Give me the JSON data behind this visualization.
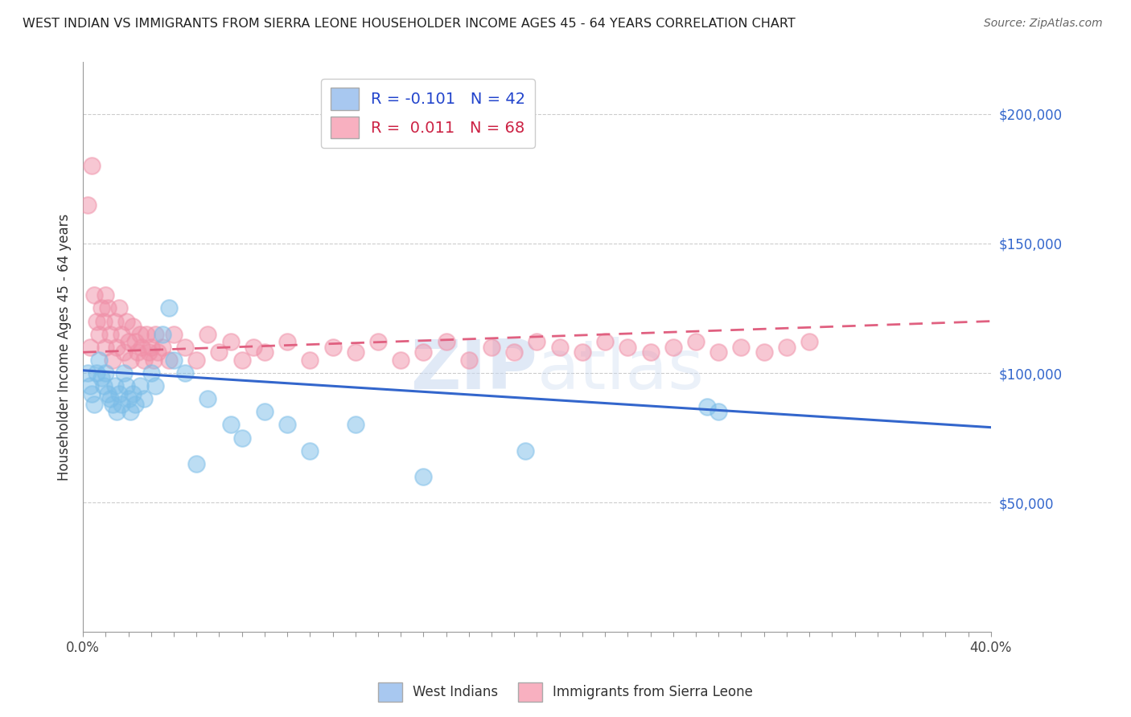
{
  "title": "WEST INDIAN VS IMMIGRANTS FROM SIERRA LEONE HOUSEHOLDER INCOME AGES 45 - 64 YEARS CORRELATION CHART",
  "source": "Source: ZipAtlas.com",
  "ylabel": "Householder Income Ages 45 - 64 years",
  "ylabel_values": [
    50000,
    100000,
    150000,
    200000
  ],
  "ylabel_labels": [
    "$50,000",
    "$100,000",
    "$150,000",
    "$200,000"
  ],
  "blue_color": "#7bbde8",
  "pink_color": "#f090a8",
  "trend_blue": "#3366cc",
  "trend_pink": "#e06080",
  "legend_1_color": "#a8c8f0",
  "legend_2_color": "#f8b0c0",
  "watermark": "ZIPatlas",
  "west_indians_x": [
    0.2,
    0.3,
    0.4,
    0.5,
    0.6,
    0.7,
    0.8,
    0.9,
    1.0,
    1.1,
    1.2,
    1.3,
    1.4,
    1.5,
    1.6,
    1.7,
    1.8,
    1.9,
    2.0,
    2.1,
    2.2,
    2.3,
    2.5,
    2.7,
    3.0,
    3.2,
    3.5,
    3.8,
    4.0,
    4.5,
    5.0,
    5.5,
    6.5,
    7.0,
    8.0,
    9.0,
    10.0,
    12.0,
    15.0,
    19.5,
    27.5,
    28.0
  ],
  "west_indians_y": [
    100000,
    95000,
    92000,
    88000,
    100000,
    105000,
    98000,
    95000,
    100000,
    92000,
    90000,
    88000,
    95000,
    85000,
    92000,
    88000,
    100000,
    95000,
    90000,
    85000,
    92000,
    88000,
    95000,
    90000,
    100000,
    95000,
    115000,
    125000,
    105000,
    100000,
    65000,
    90000,
    80000,
    75000,
    85000,
    80000,
    70000,
    80000,
    60000,
    70000,
    87000,
    85000
  ],
  "sierra_leone_x": [
    0.2,
    0.3,
    0.4,
    0.5,
    0.6,
    0.7,
    0.8,
    0.9,
    1.0,
    1.0,
    1.1,
    1.2,
    1.3,
    1.4,
    1.5,
    1.6,
    1.7,
    1.8,
    1.9,
    2.0,
    2.1,
    2.2,
    2.3,
    2.4,
    2.5,
    2.6,
    2.7,
    2.8,
    2.9,
    3.0,
    3.1,
    3.2,
    3.3,
    3.5,
    3.8,
    4.0,
    4.5,
    5.0,
    5.5,
    6.0,
    6.5,
    7.0,
    7.5,
    8.0,
    9.0,
    10.0,
    11.0,
    12.0,
    13.0,
    14.0,
    15.0,
    16.0,
    17.0,
    18.0,
    19.0,
    20.0,
    21.0,
    22.0,
    23.0,
    24.0,
    25.0,
    26.0,
    27.0,
    28.0,
    29.0,
    30.0,
    31.0,
    32.0
  ],
  "sierra_leone_y": [
    165000,
    110000,
    180000,
    130000,
    120000,
    115000,
    125000,
    120000,
    110000,
    130000,
    125000,
    115000,
    105000,
    120000,
    110000,
    125000,
    115000,
    108000,
    120000,
    112000,
    105000,
    118000,
    112000,
    108000,
    115000,
    110000,
    105000,
    115000,
    108000,
    110000,
    105000,
    115000,
    108000,
    110000,
    105000,
    115000,
    110000,
    105000,
    115000,
    108000,
    112000,
    105000,
    110000,
    108000,
    112000,
    105000,
    110000,
    108000,
    112000,
    105000,
    108000,
    112000,
    105000,
    110000,
    108000,
    112000,
    110000,
    108000,
    112000,
    110000,
    108000,
    110000,
    112000,
    108000,
    110000,
    108000,
    110000,
    112000
  ],
  "wi_trend_x": [
    0,
    40
  ],
  "wi_trend_y": [
    101000,
    79000
  ],
  "sl_trend_x": [
    0,
    40
  ],
  "sl_trend_y": [
    108000,
    120000
  ],
  "xmin": 0.0,
  "xmax": 40.0,
  "ymin": 0,
  "ymax": 220000,
  "xticks": [
    0,
    5,
    10,
    15,
    20,
    25,
    30,
    35,
    40
  ],
  "xtick_labels_show": [
    0,
    40
  ]
}
